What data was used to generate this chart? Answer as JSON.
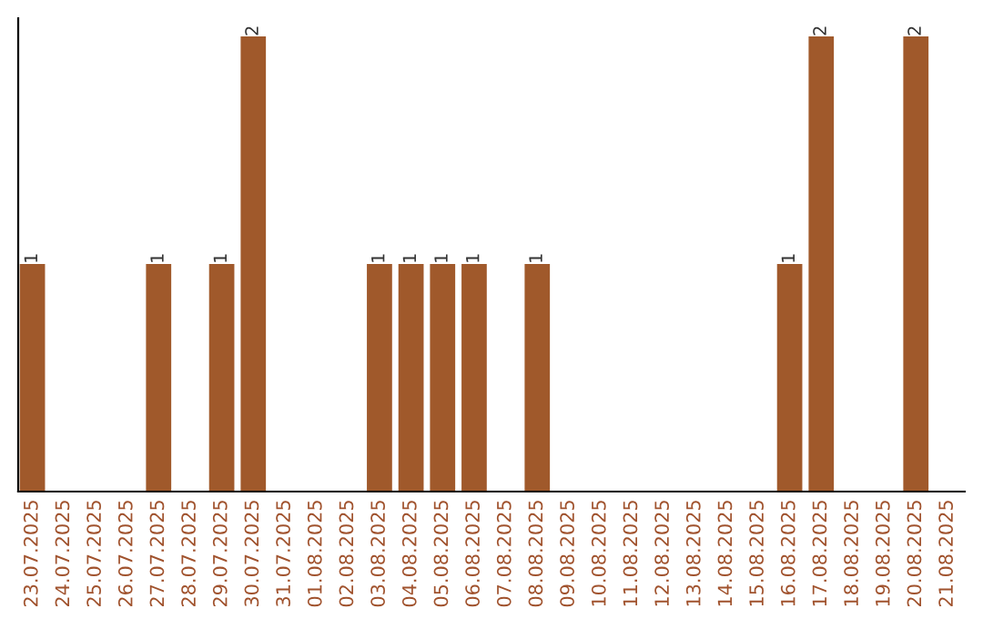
{
  "chart_data": {
    "type": "bar",
    "categories": [
      "23.07.2025",
      "24.07.2025",
      "25.07.2025",
      "26.07.2025",
      "27.07.2025",
      "28.07.2025",
      "29.07.2025",
      "30.07.2025",
      "31.07.2025",
      "01.08.2025",
      "02.08.2025",
      "03.08.2025",
      "04.08.2025",
      "05.08.2025",
      "06.08.2025",
      "07.08.2025",
      "08.08.2025",
      "09.08.2025",
      "10.08.2025",
      "11.08.2025",
      "12.08.2025",
      "13.08.2025",
      "14.08.2025",
      "15.08.2025",
      "16.08.2025",
      "17.08.2025",
      "18.08.2025",
      "19.08.2025",
      "20.08.2025",
      "21.08.2025"
    ],
    "values": [
      1,
      0,
      0,
      0,
      1,
      0,
      1,
      2,
      0,
      0,
      0,
      1,
      1,
      1,
      1,
      0,
      1,
      0,
      0,
      0,
      0,
      0,
      0,
      0,
      1,
      2,
      0,
      0,
      2,
      0
    ],
    "value_labels": [
      "1",
      null,
      null,
      null,
      "1",
      null,
      "1",
      "2",
      null,
      null,
      null,
      "1",
      "1",
      "1",
      "1",
      null,
      "1",
      null,
      null,
      null,
      null,
      null,
      null,
      null,
      "1",
      "2",
      null,
      null,
      "2",
      null
    ],
    "color": "#a0592b",
    "grid": false
  }
}
